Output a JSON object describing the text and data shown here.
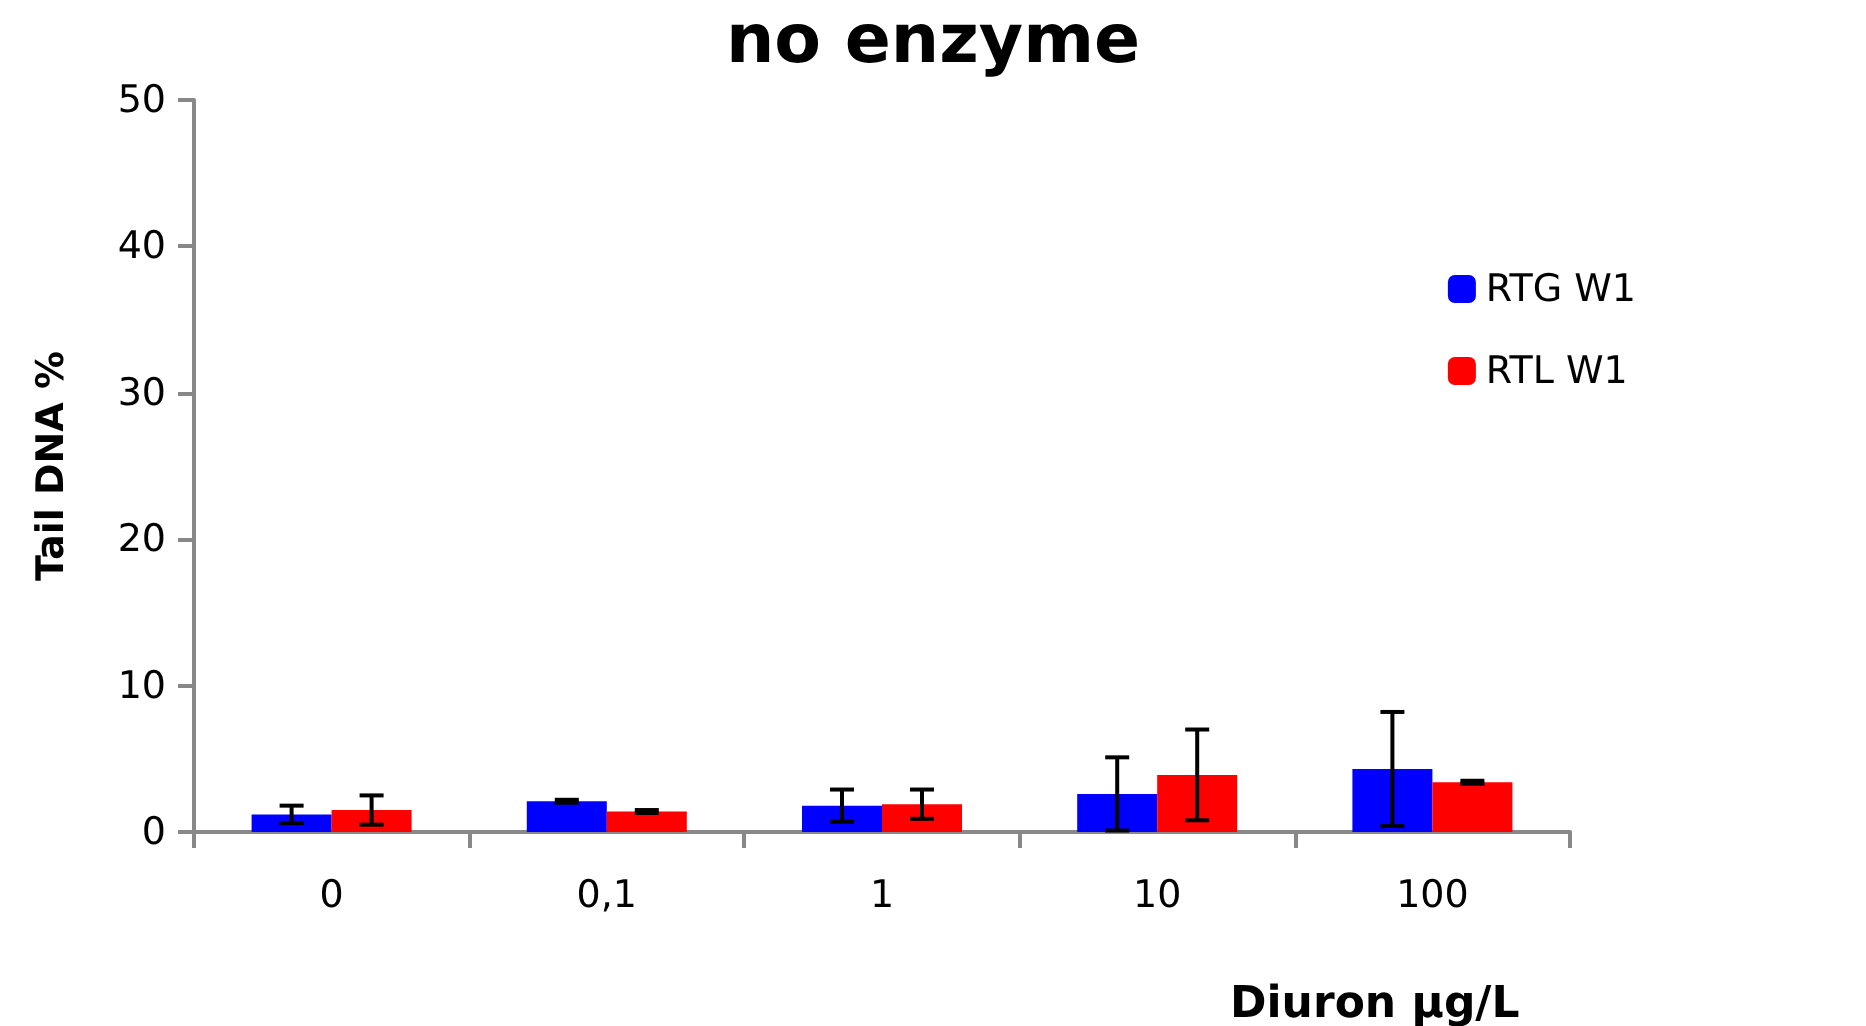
{
  "chart_data": {
    "type": "bar",
    "title": "no enzyme",
    "xlabel": "Diuron µg/L",
    "ylabel": "Tail DNA %",
    "categories": [
      "0",
      "0,1",
      "1",
      "10",
      "100"
    ],
    "series": [
      {
        "name": "RTG W1",
        "color": "#0000ff",
        "values": [
          1.2,
          2.1,
          1.8,
          2.6,
          4.3
        ],
        "errors": [
          0.6,
          0.1,
          1.1,
          2.5,
          3.9
        ]
      },
      {
        "name": "RTL W1",
        "color": "#ff0000",
        "values": [
          1.5,
          1.4,
          1.9,
          3.9,
          3.4
        ],
        "errors": [
          1.0,
          0.1,
          1.0,
          3.1,
          0.1
        ]
      }
    ],
    "ylim": [
      0,
      50
    ],
    "yticks": [
      0,
      10,
      20,
      30,
      40,
      50
    ],
    "grid": false,
    "legend": "top right"
  }
}
